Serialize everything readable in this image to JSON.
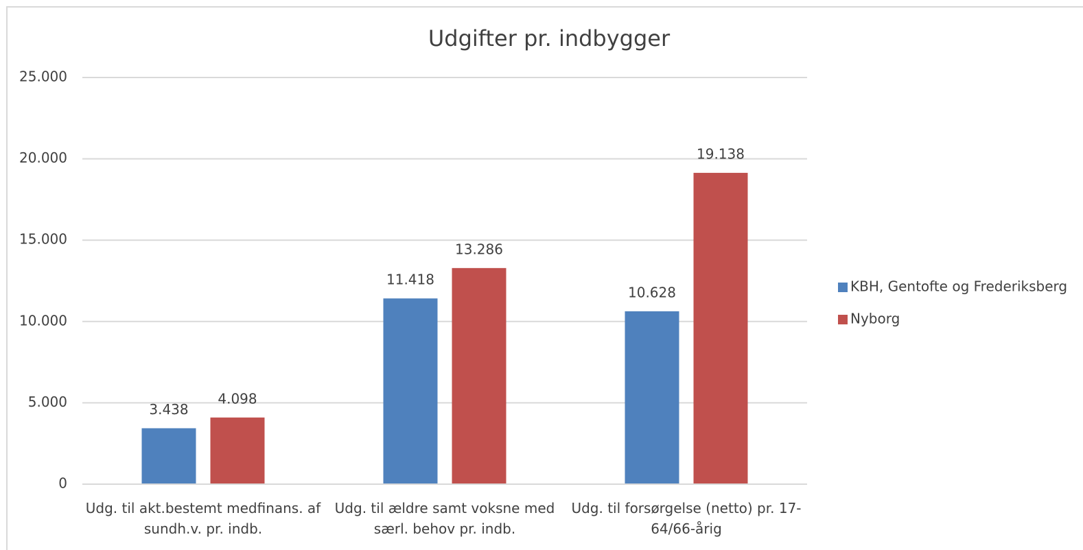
{
  "chart_data": {
    "type": "bar",
    "title": "Udgifter pr. indbygger",
    "categories": [
      "Udg. til akt.bestemt medfinans. af sundh.v. pr. indb.",
      "Udg. til ældre samt voksne med særl. behov pr. indb.",
      "Udg. til forsørgelse (netto) pr. 17-64/66-årig"
    ],
    "series": [
      {
        "name": "KBH, Gentofte og Frederiksberg",
        "color": "#4f81bd",
        "values": [
          3438,
          11418,
          10628
        ],
        "value_labels": [
          "3.438",
          "11.418",
          "10.628"
        ]
      },
      {
        "name": "Nyborg",
        "color": "#c0504d",
        "values": [
          4098,
          13286,
          19138
        ],
        "value_labels": [
          "4.098",
          "13.286",
          "19.138"
        ]
      }
    ],
    "ylim": [
      0,
      25000
    ],
    "yticks": [
      0,
      {
        "value": 5000,
        "label": "5.000"
      },
      {
        "value": 10000,
        "label": "10.000"
      },
      {
        "value": 15000,
        "label": "15.000"
      },
      {
        "value": 20000,
        "label": "20.000"
      },
      {
        "value": 25000,
        "label": "25.000"
      }
    ],
    "grid": true,
    "legend": "right"
  }
}
